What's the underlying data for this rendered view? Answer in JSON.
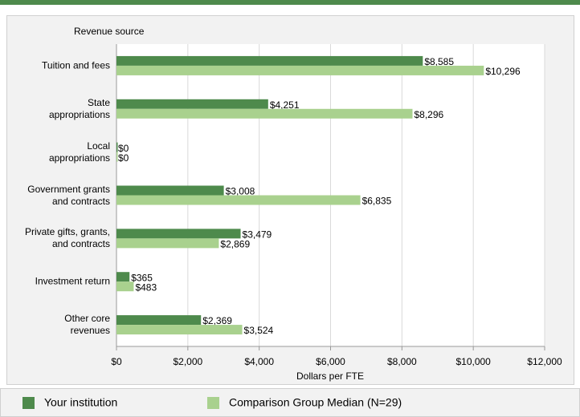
{
  "chart_data": {
    "type": "bar",
    "orientation": "horizontal",
    "title": "Revenue source",
    "x_label": "Dollars per FTE",
    "categories": [
      "Tuition and fees",
      "State\nappropriations",
      "Local\nappropriations",
      "Government grants\nand contracts",
      "Private gifts, grants,\nand contracts",
      "Investment return",
      "Other core\nrevenues"
    ],
    "series": [
      {
        "name": "Your institution",
        "color": "#4e8a4c",
        "values": [
          8585,
          4251,
          0,
          3008,
          3479,
          365,
          2369
        ],
        "value_labels": [
          "$8,585",
          "$4,251",
          "$0",
          "$3,008",
          "$3,479",
          "$365",
          "$2,369"
        ]
      },
      {
        "name": "Comparison Group Median (N=29)",
        "color": "#a9d18e",
        "values": [
          10296,
          8296,
          0,
          6835,
          2869,
          483,
          3524
        ],
        "value_labels": [
          "$10,296",
          "$8,296",
          "$0",
          "$6,835",
          "$2,869",
          "$483",
          "$3,524"
        ]
      }
    ],
    "xlim": [
      0,
      12000
    ],
    "xticks": [
      {
        "value": 0,
        "label": "$0"
      },
      {
        "value": 2000,
        "label": "$2,000"
      },
      {
        "value": 4000,
        "label": "$4,000"
      },
      {
        "value": 6000,
        "label": "$6,000"
      },
      {
        "value": 8000,
        "label": "$8,000"
      },
      {
        "value": 10000,
        "label": "$10,000"
      },
      {
        "value": 12000,
        "label": "$12,000"
      }
    ],
    "grid": true,
    "legend": "bottom"
  }
}
